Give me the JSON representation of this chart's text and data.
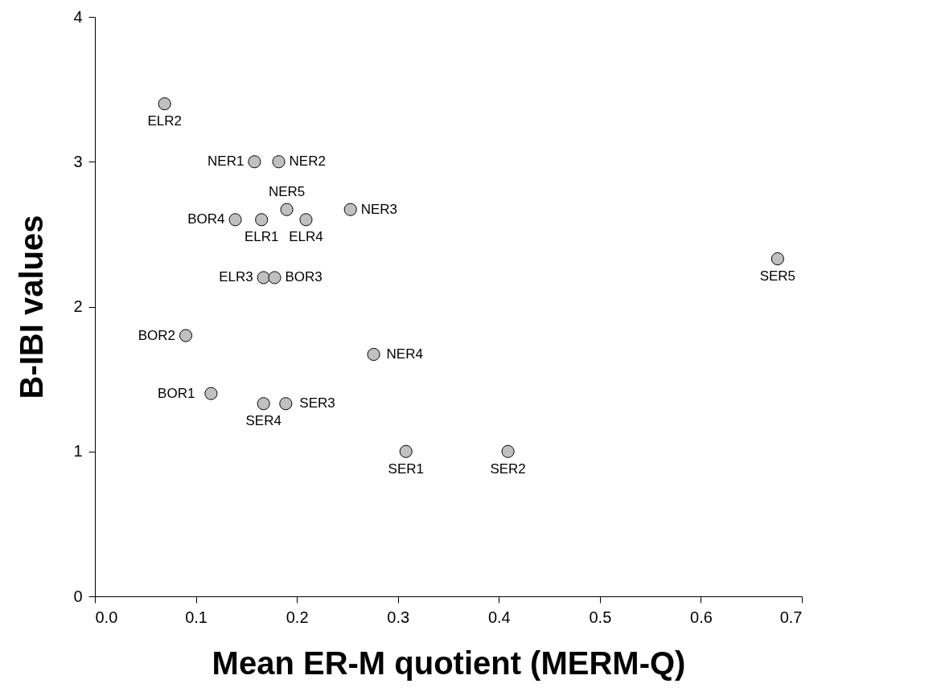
{
  "chart_data": {
    "type": "scatter",
    "xlabel": "Mean ER-M quotient (MERM-Q)",
    "ylabel": "B-IBI values",
    "xlim": [
      0,
      0.7
    ],
    "xticks": [
      {
        "value": 0,
        "label": "0.0"
      },
      0.1,
      0.2,
      0.3,
      0.4,
      0.5,
      0.6,
      0.7
    ],
    "ylim": [
      0,
      4
    ],
    "yticks": [
      0,
      1,
      2,
      3,
      4
    ],
    "grid": false,
    "marker": "circle",
    "series": [
      {
        "color": "#c0c0c0",
        "x": [
          0.069,
          0.158,
          0.182,
          0.19,
          0.253,
          0.139,
          0.165,
          0.209,
          0.167,
          0.178,
          0.676,
          0.09,
          0.276,
          0.115,
          0.167,
          0.189,
          0.308,
          0.409
        ],
        "values": [
          3.4,
          3.0,
          3.0,
          2.67,
          2.67,
          2.6,
          2.6,
          2.6,
          2.2,
          2.2,
          2.33,
          1.8,
          1.67,
          1.4,
          1.33,
          1.33,
          1.0,
          1.0
        ]
      }
    ],
    "annotations": [
      {
        "text": "ELR2",
        "x": 0.069,
        "y": 3.4
      },
      {
        "text": "NER1",
        "x": 0.158,
        "y": 3.0
      },
      {
        "text": "NER2",
        "x": 0.182,
        "y": 3.0
      },
      {
        "text": "NER5",
        "x": 0.19,
        "y": 2.67
      },
      {
        "text": "NER3",
        "x": 0.253,
        "y": 2.67
      },
      {
        "text": "BOR4",
        "x": 0.139,
        "y": 2.6
      },
      {
        "text": "ELR1",
        "x": 0.165,
        "y": 2.6
      },
      {
        "text": "ELR4",
        "x": 0.209,
        "y": 2.6
      },
      {
        "text": "ELR3",
        "x": 0.167,
        "y": 2.2
      },
      {
        "text": "BOR3",
        "x": 0.178,
        "y": 2.2
      },
      {
        "text": "SER5",
        "x": 0.676,
        "y": 2.33
      },
      {
        "text": "BOR2",
        "x": 0.09,
        "y": 1.8
      },
      {
        "text": "NER4",
        "x": 0.276,
        "y": 1.67
      },
      {
        "text": "BOR1",
        "x": 0.115,
        "y": 1.4
      },
      {
        "text": "SER4",
        "x": 0.167,
        "y": 1.33
      },
      {
        "text": "SER3",
        "x": 0.189,
        "y": 1.33
      },
      {
        "text": "SER1",
        "x": 0.308,
        "y": 1.0
      },
      {
        "text": "SER2",
        "x": 0.409,
        "y": 1.0
      }
    ]
  }
}
